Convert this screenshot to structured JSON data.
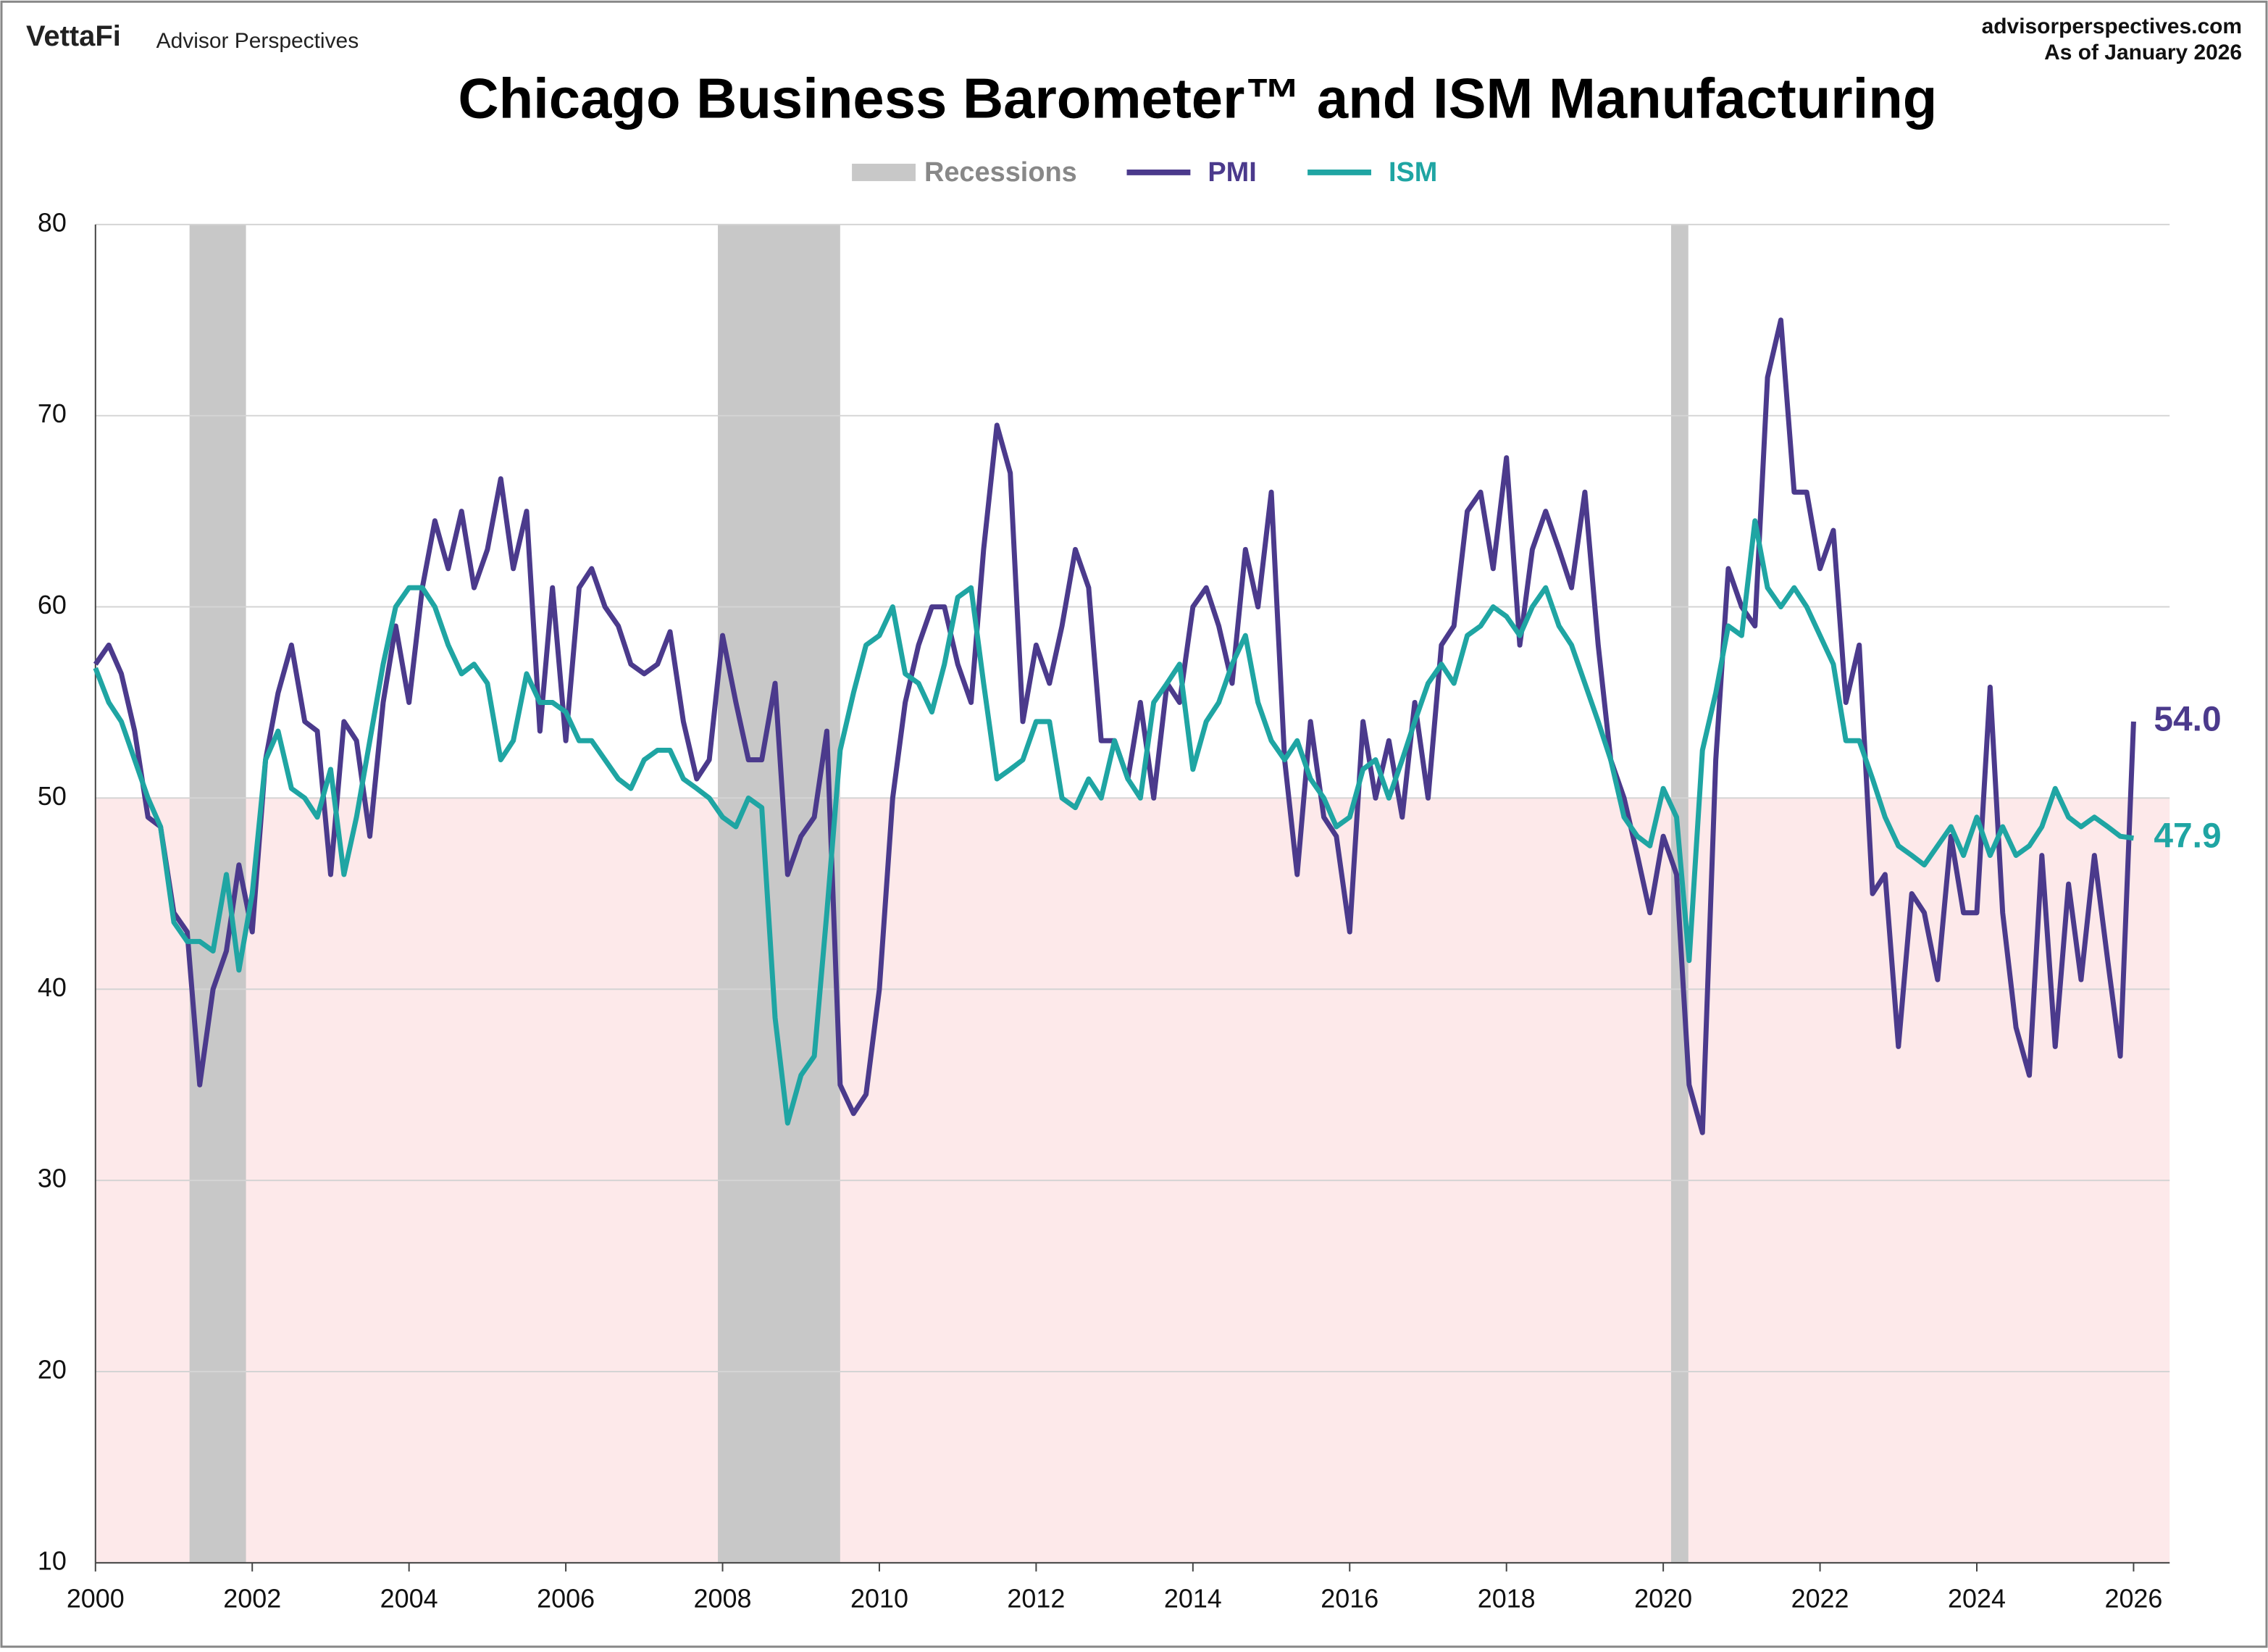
{
  "brand": "VettaFi",
  "brand_sub": "Advisor Perspectives",
  "site": "advisorperspectives.com",
  "as_of": "As of January 2026",
  "chart_data": {
    "type": "line",
    "title": "Chicago Business Barometer™ and ISM Manufacturing",
    "xlim": [
      2000,
      2026.46
    ],
    "xticks": [
      2000,
      2002,
      2004,
      2006,
      2008,
      2010,
      2012,
      2014,
      2016,
      2018,
      2020,
      2022,
      2024,
      2026
    ],
    "ylim": [
      10,
      80
    ],
    "yticks": [
      10,
      20,
      30,
      40,
      50,
      60,
      70,
      80
    ],
    "grid": true,
    "shaded_band": {
      "range": [
        10,
        50
      ],
      "color": "#fde9ea"
    },
    "recessions": {
      "name": "Recessions",
      "color": "#c8c8c8",
      "periods": [
        [
          2001.2,
          2001.92
        ],
        [
          2007.94,
          2009.5
        ],
        [
          2020.1,
          2020.32
        ]
      ]
    },
    "x": [
      2000,
      2000.17,
      2000.33,
      2000.5,
      2000.67,
      2000.83,
      2001,
      2001.17,
      2001.33,
      2001.5,
      2001.67,
      2001.83,
      2002,
      2002.17,
      2002.33,
      2002.5,
      2002.67,
      2002.83,
      2003,
      2003.17,
      2003.33,
      2003.5,
      2003.67,
      2003.83,
      2004,
      2004.17,
      2004.33,
      2004.5,
      2004.67,
      2004.83,
      2005,
      2005.17,
      2005.33,
      2005.5,
      2005.67,
      2005.83,
      2006,
      2006.17,
      2006.33,
      2006.5,
      2006.67,
      2006.83,
      2007,
      2007.17,
      2007.33,
      2007.5,
      2007.67,
      2007.83,
      2008,
      2008.17,
      2008.33,
      2008.5,
      2008.67,
      2008.83,
      2009,
      2009.17,
      2009.33,
      2009.5,
      2009.67,
      2009.83,
      2010,
      2010.17,
      2010.33,
      2010.5,
      2010.67,
      2010.83,
      2011,
      2011.17,
      2011.33,
      2011.5,
      2011.67,
      2011.83,
      2012,
      2012.17,
      2012.33,
      2012.5,
      2012.67,
      2012.83,
      2013,
      2013.17,
      2013.33,
      2013.5,
      2013.67,
      2013.83,
      2014,
      2014.17,
      2014.33,
      2014.5,
      2014.67,
      2014.83,
      2015,
      2015.17,
      2015.33,
      2015.5,
      2015.67,
      2015.83,
      2016,
      2016.17,
      2016.33,
      2016.5,
      2016.67,
      2016.83,
      2017,
      2017.17,
      2017.33,
      2017.5,
      2017.67,
      2017.83,
      2018,
      2018.17,
      2018.33,
      2018.5,
      2018.67,
      2018.83,
      2019,
      2019.17,
      2019.33,
      2019.5,
      2019.67,
      2019.83,
      2020,
      2020.17,
      2020.33,
      2020.5,
      2020.67,
      2020.83,
      2021,
      2021.17,
      2021.33,
      2021.5,
      2021.67,
      2021.83,
      2022,
      2022.17,
      2022.33,
      2022.5,
      2022.67,
      2022.83,
      2023,
      2023.17,
      2023.33,
      2023.5,
      2023.67,
      2023.83,
      2024,
      2024.17,
      2024.33,
      2024.5,
      2024.67,
      2024.83,
      2025,
      2025.17,
      2025.33,
      2025.5,
      2025.67,
      2025.83,
      2026
    ],
    "series": [
      {
        "name": "PMI",
        "color": "#4b3a8c",
        "end_label": "54.0",
        "values": [
          57,
          58,
          56.5,
          53.5,
          49,
          48.5,
          44,
          43,
          35,
          40,
          42,
          46.5,
          43,
          52,
          55.5,
          58,
          54,
          53.5,
          46,
          54,
          53,
          48,
          55,
          59,
          55,
          61,
          64.5,
          62,
          65,
          61,
          63,
          66.7,
          62,
          65,
          53.5,
          61,
          53,
          61,
          62,
          60,
          59,
          57,
          56.5,
          57,
          58.7,
          54,
          51,
          52,
          58.5,
          55,
          52,
          52,
          56,
          46,
          48,
          49,
          53.5,
          35,
          33.5,
          34.5,
          40,
          50,
          55,
          58,
          60,
          60,
          57,
          55,
          63,
          69.5,
          67,
          54,
          58,
          56,
          59,
          63,
          61,
          53,
          53,
          51,
          55,
          50,
          56,
          55,
          60,
          61,
          59,
          56,
          63,
          60,
          66,
          52,
          46,
          54,
          49,
          48,
          43,
          54,
          50,
          53,
          49,
          55,
          50,
          58,
          59,
          65,
          66,
          62,
          67.8,
          58,
          63,
          65,
          63,
          61,
          66,
          58,
          52,
          50,
          47,
          44,
          48,
          46,
          35,
          32.5,
          52,
          62,
          60,
          59,
          72,
          75,
          66,
          66,
          62,
          64,
          55,
          58,
          45,
          46,
          37,
          45,
          44,
          40.5,
          48,
          44,
          44,
          55.8,
          44,
          38,
          35.5,
          47,
          37,
          45.5,
          40.5,
          47,
          41.5,
          36.5,
          54.0
        ]
      },
      {
        "name": "ISM",
        "color": "#1fa5a3",
        "end_label": "47.9",
        "values": [
          56.8,
          55,
          54,
          52,
          50,
          48.5,
          43.5,
          42.5,
          42.5,
          42,
          46,
          41,
          45,
          52,
          53.5,
          50.5,
          50,
          49,
          51.5,
          46,
          49,
          53,
          57,
          60,
          61,
          61,
          60,
          58,
          56.5,
          57,
          56,
          52,
          53,
          56.5,
          55,
          55,
          54.5,
          53,
          53,
          52,
          51,
          50.5,
          52,
          52.5,
          52.5,
          51,
          50.5,
          50,
          49,
          48.5,
          50,
          49.5,
          38.5,
          33,
          35.5,
          36.5,
          44,
          52.5,
          55.5,
          58,
          58.5,
          60,
          56.5,
          56,
          54.5,
          57,
          60.5,
          61,
          56,
          51,
          51.5,
          52,
          54,
          54,
          50,
          49.5,
          51,
          50,
          53,
          51,
          50,
          55,
          56,
          57,
          51.5,
          54,
          55,
          57,
          58.5,
          55,
          53,
          52,
          53,
          51,
          50,
          48.5,
          49,
          51.5,
          52,
          50,
          52,
          54,
          56,
          57,
          56,
          58.5,
          59,
          60,
          59.5,
          58.5,
          60,
          61,
          59,
          58,
          56,
          54,
          52,
          49,
          48,
          47.5,
          50.5,
          49,
          41.5,
          52.5,
          55.5,
          59,
          58.5,
          64.5,
          61,
          60,
          61,
          60,
          58.5,
          57,
          53,
          53,
          51,
          49,
          47.5,
          47,
          46.5,
          47.5,
          48.5,
          47,
          49,
          47,
          48.5,
          47,
          47.5,
          48.5,
          50.5,
          49,
          48.5,
          49,
          48.5,
          48,
          47.9
        ]
      }
    ]
  }
}
